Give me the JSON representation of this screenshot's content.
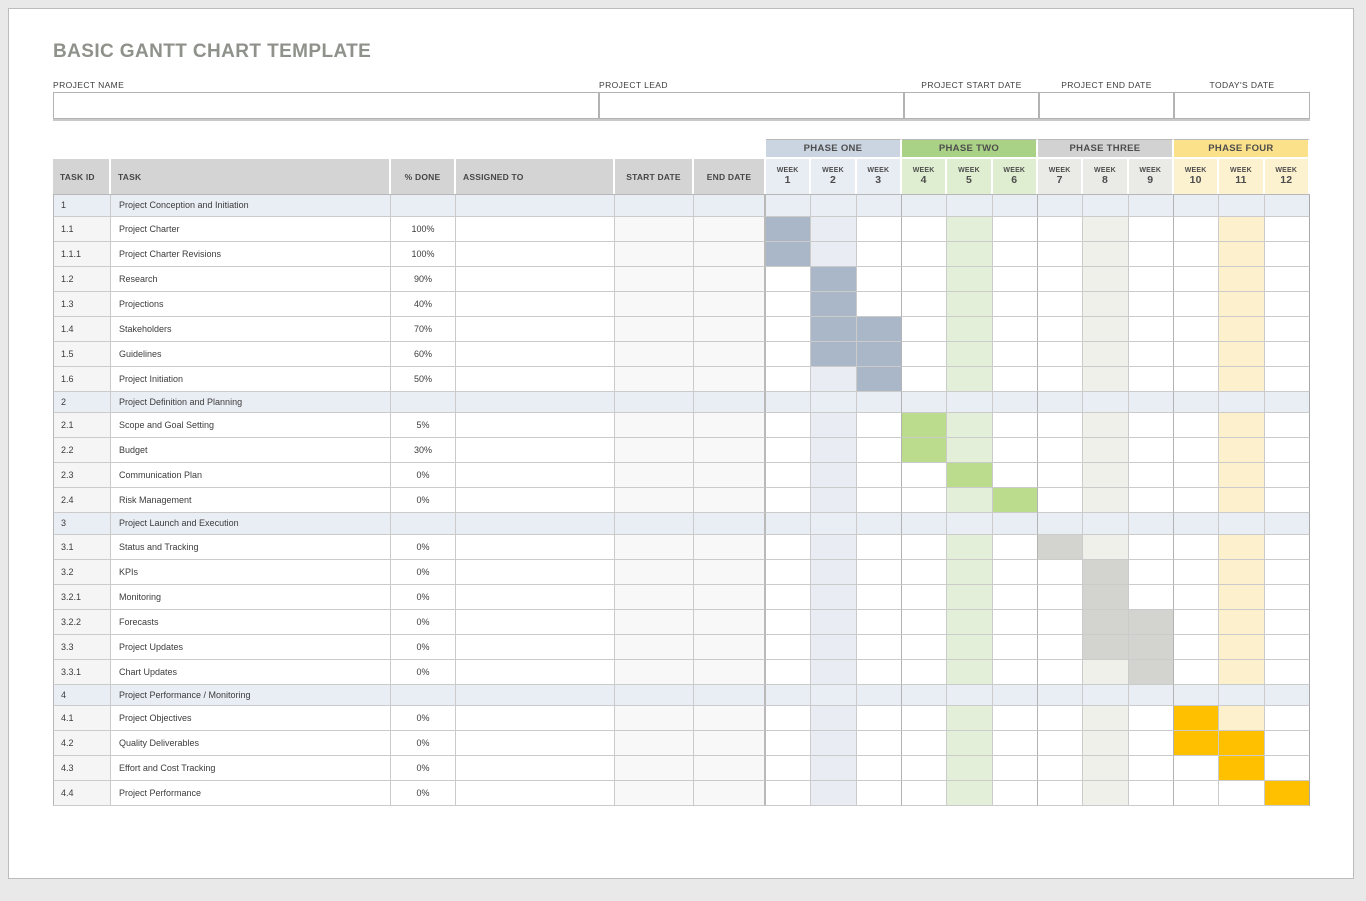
{
  "page": {
    "title": "BASIC GANTT CHART TEMPLATE"
  },
  "form": {
    "fields": [
      {
        "label": "PROJECT NAME",
        "value": "",
        "align": "left"
      },
      {
        "label": "PROJECT LEAD",
        "value": "",
        "align": "left"
      },
      {
        "label": "PROJECT START DATE",
        "value": "",
        "align": "center"
      },
      {
        "label": "PROJECT END DATE",
        "value": "",
        "align": "center"
      },
      {
        "label": "TODAY'S DATE",
        "value": "",
        "align": "center"
      }
    ]
  },
  "table": {
    "columns": [
      "TASK ID",
      "TASK",
      "% DONE",
      "ASSIGNED TO",
      "START DATE",
      "END DATE"
    ],
    "week_word": "WEEK",
    "phases": [
      {
        "label": "PHASE ONE",
        "weeks": [
          "1",
          "2",
          "3"
        ],
        "header_bg": "#cbd4e1",
        "week_bg": "#e8ecf3",
        "bar": "#a9b7c9",
        "tint": "#e9edf3"
      },
      {
        "label": "PHASE TWO",
        "weeks": [
          "4",
          "5",
          "6"
        ],
        "header_bg": "#aad287",
        "week_bg": "#dfeed0",
        "bar": "#bcdc8d",
        "tint": "#e3efd9"
      },
      {
        "label": "PHASE THREE",
        "weeks": [
          "7",
          "8",
          "9"
        ],
        "header_bg": "#d2d2d2",
        "week_bg": "#eaeae7",
        "bar": "#d3d3d0",
        "tint": "#f0f0eb"
      },
      {
        "label": "PHASE FOUR",
        "weeks": [
          "10",
          "11",
          "12"
        ],
        "header_bg": "#fce18b",
        "week_bg": "#fdf2d0",
        "bar": "#ffc000",
        "tint": "#fdf0cc"
      }
    ],
    "section_bg": "#e9edf4",
    "rows": [
      {
        "id": "1",
        "task": "Project Conception and Initiation",
        "done": "",
        "section": true
      },
      {
        "id": "1.1",
        "task": "Project Charter",
        "done": "100%",
        "bars": [
          1
        ],
        "tints": [
          2,
          5,
          8,
          11
        ]
      },
      {
        "id": "1.1.1",
        "task": "Project Charter Revisions",
        "done": "100%",
        "bars": [
          1
        ],
        "tints": [
          2,
          5,
          8,
          11
        ]
      },
      {
        "id": "1.2",
        "task": "Research",
        "done": "90%",
        "bars": [
          2
        ],
        "tints": [
          5,
          8,
          11
        ]
      },
      {
        "id": "1.3",
        "task": "Projections",
        "done": "40%",
        "bars": [
          2
        ],
        "tints": [
          5,
          8,
          11
        ]
      },
      {
        "id": "1.4",
        "task": "Stakeholders",
        "done": "70%",
        "bars": [
          2,
          3
        ],
        "tints": [
          5,
          8,
          11
        ]
      },
      {
        "id": "1.5",
        "task": "Guidelines",
        "done": "60%",
        "bars": [
          2,
          3
        ],
        "tints": [
          5,
          8,
          11
        ]
      },
      {
        "id": "1.6",
        "task": "Project Initiation",
        "done": "50%",
        "bars": [
          3
        ],
        "tints": [
          2,
          5,
          8,
          11
        ]
      },
      {
        "id": "2",
        "task": "Project Definition and Planning",
        "done": "",
        "section": true
      },
      {
        "id": "2.1",
        "task": "Scope and Goal Setting",
        "done": "5%",
        "bars": [
          4
        ],
        "tints": [
          2,
          5,
          8,
          11
        ]
      },
      {
        "id": "2.2",
        "task": "Budget",
        "done": "30%",
        "bars": [
          4
        ],
        "tints": [
          2,
          5,
          8,
          11
        ]
      },
      {
        "id": "2.3",
        "task": "Communication Plan",
        "done": "0%",
        "bars": [
          5
        ],
        "tints": [
          2,
          8,
          11
        ]
      },
      {
        "id": "2.4",
        "task": "Risk Management",
        "done": "0%",
        "bars": [
          6
        ],
        "tints": [
          2,
          5,
          8,
          11
        ]
      },
      {
        "id": "3",
        "task": "Project Launch and Execution",
        "done": "",
        "section": true
      },
      {
        "id": "3.1",
        "task": "Status and Tracking",
        "done": "0%",
        "bars": [
          7
        ],
        "tints": [
          2,
          5,
          8,
          11
        ]
      },
      {
        "id": "3.2",
        "task": "KPIs",
        "done": "0%",
        "bars": [
          8
        ],
        "tints": [
          2,
          5,
          11
        ]
      },
      {
        "id": "3.2.1",
        "task": "Monitoring",
        "done": "0%",
        "bars": [
          8
        ],
        "tints": [
          2,
          5,
          11
        ]
      },
      {
        "id": "3.2.2",
        "task": "Forecasts",
        "done": "0%",
        "bars": [
          8,
          9
        ],
        "tints": [
          2,
          5,
          11
        ]
      },
      {
        "id": "3.3",
        "task": "Project Updates",
        "done": "0%",
        "bars": [
          8,
          9
        ],
        "tints": [
          2,
          5,
          11
        ]
      },
      {
        "id": "3.3.1",
        "task": "Chart Updates",
        "done": "0%",
        "bars": [
          9
        ],
        "tints": [
          2,
          5,
          8,
          11
        ]
      },
      {
        "id": "4",
        "task": "Project Performance / Monitoring",
        "done": "",
        "section": true
      },
      {
        "id": "4.1",
        "task": "Project Objectives",
        "done": "0%",
        "bars": [
          10
        ],
        "tints": [
          2,
          5,
          8,
          11
        ]
      },
      {
        "id": "4.2",
        "task": "Quality Deliverables",
        "done": "0%",
        "bars": [
          10,
          11
        ],
        "tints": [
          2,
          5,
          8
        ]
      },
      {
        "id": "4.3",
        "task": "Effort and Cost Tracking",
        "done": "0%",
        "bars": [
          11
        ],
        "tints": [
          2,
          5,
          8
        ]
      },
      {
        "id": "4.4",
        "task": "Project Performance",
        "done": "0%",
        "bars": [
          12
        ],
        "tints": [
          2,
          5,
          8
        ]
      }
    ]
  },
  "colors": {
    "title_text": "#8f918b",
    "grid_line": "#cbcbcb",
    "header_bg": "#d4d4d4",
    "section_row_bg": "#e9edf4",
    "task_id_col_bg": "#f5f5f5",
    "date_col_bg": "#f8f8f8"
  }
}
